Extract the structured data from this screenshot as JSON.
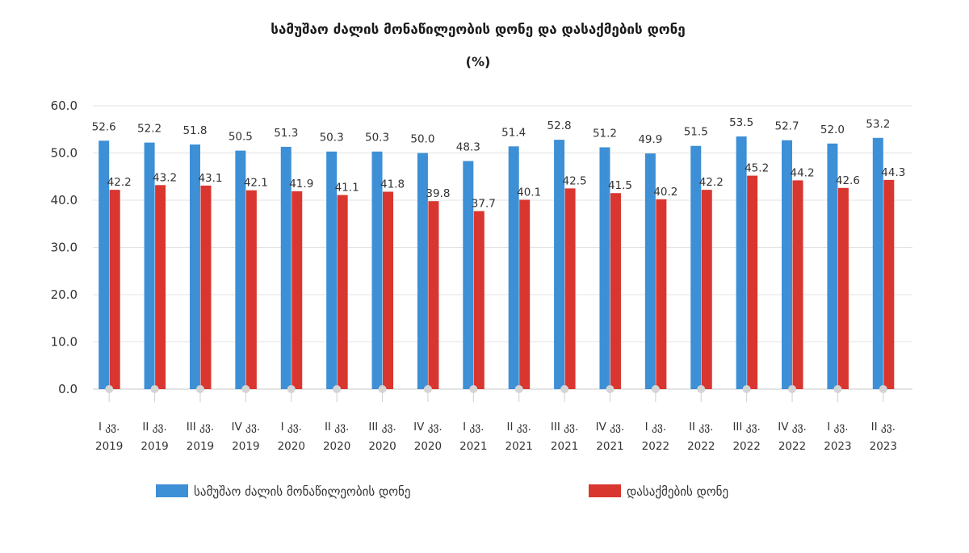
{
  "chart_data": {
    "type": "bar",
    "title": "სამუშაო ძალის მონაწილეობის დონე და დასაქმების დონე",
    "subtitle": "(%)",
    "categories": [
      [
        "I კვ.",
        "2019"
      ],
      [
        "II კვ.",
        "2019"
      ],
      [
        "III კვ.",
        "2019"
      ],
      [
        "IV კვ.",
        "2019"
      ],
      [
        "I კვ.",
        "2020"
      ],
      [
        "II კვ.",
        "2020"
      ],
      [
        "III კვ.",
        "2020"
      ],
      [
        "IV კვ.",
        "2020"
      ],
      [
        "I კვ.",
        "2021"
      ],
      [
        "II კვ.",
        "2021"
      ],
      [
        "III კვ.",
        "2021"
      ],
      [
        "IV კვ.",
        "2021"
      ],
      [
        "I კვ.",
        "2022"
      ],
      [
        "II კვ.",
        "2022"
      ],
      [
        "III კვ.",
        "2022"
      ],
      [
        "IV კვ.",
        "2022"
      ],
      [
        "I კვ.",
        "2023"
      ],
      [
        "II კვ.",
        "2023"
      ]
    ],
    "series": [
      {
        "name": "სამუშაო ძალის მონაწილეობის დონე",
        "color": "#3d8fd6",
        "values": [
          52.6,
          52.2,
          51.8,
          50.5,
          51.3,
          50.3,
          50.3,
          50.0,
          48.3,
          51.4,
          52.8,
          51.2,
          49.9,
          51.5,
          53.5,
          52.7,
          52.0,
          53.2
        ]
      },
      {
        "name": "დასაქმების დონე",
        "color": "#d9362f",
        "values": [
          42.2,
          43.2,
          43.1,
          42.1,
          41.9,
          41.1,
          41.8,
          39.8,
          37.7,
          40.1,
          42.5,
          41.5,
          40.2,
          42.2,
          45.2,
          44.2,
          42.6,
          44.3
        ]
      }
    ],
    "ylim": [
      0,
      60
    ],
    "yticks": [
      "0.0",
      "10.0",
      "20.0",
      "30.0",
      "40.0",
      "50.0",
      "60.0"
    ],
    "ytick_values": [
      0,
      10,
      20,
      30,
      40,
      50,
      60
    ],
    "grid": true,
    "legend_position": "bottom"
  }
}
